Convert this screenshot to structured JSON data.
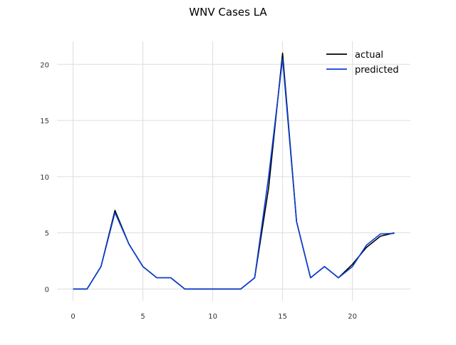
{
  "chart_data": {
    "type": "line",
    "title": "WNV Cases LA",
    "xlabel": "",
    "ylabel": "",
    "xlim": [
      -1.15,
      24.15
    ],
    "ylim": [
      -1.05,
      22.05
    ],
    "x_ticks": [
      0,
      5,
      10,
      15,
      20
    ],
    "y_ticks": [
      0,
      5,
      10,
      15,
      20
    ],
    "grid": true,
    "legend_position": "top-right",
    "x": [
      0,
      1,
      2,
      3,
      4,
      5,
      6,
      7,
      8,
      9,
      10,
      11,
      12,
      13,
      14,
      15,
      16,
      17,
      18,
      19,
      20,
      21,
      22,
      23
    ],
    "series": [
      {
        "name": "actual",
        "color": "#000000",
        "values": [
          0,
          0,
          2,
          7,
          4,
          2,
          1,
          1,
          0,
          0,
          0,
          0,
          0,
          1,
          9,
          21,
          6,
          1,
          2,
          1,
          2.2,
          3.7,
          4.7,
          5
        ]
      },
      {
        "name": "predicted",
        "color": "#0b3fd6",
        "values": [
          0,
          0,
          2,
          6.8,
          4,
          2,
          1,
          1,
          0,
          0,
          0,
          0,
          0,
          1,
          10,
          20.5,
          6,
          1,
          2,
          1,
          2,
          3.9,
          4.9,
          4.95
        ]
      }
    ]
  }
}
